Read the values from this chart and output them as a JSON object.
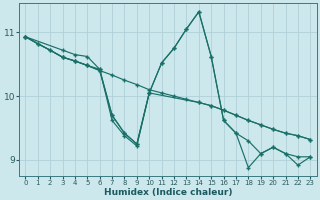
{
  "xlabel": "Humidex (Indice chaleur)",
  "ylabel": "",
  "xlim": [
    -0.5,
    23.5
  ],
  "ylim": [
    8.75,
    11.45
  ],
  "yticks": [
    9,
    10,
    11
  ],
  "xticks": [
    0,
    1,
    2,
    3,
    4,
    5,
    6,
    7,
    8,
    9,
    10,
    11,
    12,
    13,
    14,
    15,
    16,
    17,
    18,
    19,
    20,
    21,
    22,
    23
  ],
  "bg_color": "#cce8ec",
  "grid_color": "#b0d0d8",
  "line_color": "#1a7068",
  "lines": [
    {
      "x": [
        0,
        1,
        2,
        3,
        4,
        5,
        6,
        7,
        8,
        9,
        10,
        11,
        12,
        13,
        14,
        15,
        16,
        17,
        18,
        19,
        20,
        21,
        22,
        23
      ],
      "y": [
        10.93,
        10.82,
        10.72,
        10.61,
        10.55,
        10.48,
        10.4,
        10.33,
        10.25,
        10.18,
        10.1,
        10.05,
        10.0,
        9.95,
        9.9,
        9.85,
        9.78,
        9.7,
        9.62,
        9.55,
        9.48,
        9.42,
        9.38,
        9.32
      ]
    },
    {
      "x": [
        0,
        1,
        2,
        3,
        4,
        5,
        6,
        7,
        8,
        9,
        10,
        14,
        15,
        16,
        17,
        18,
        19,
        20,
        21,
        22,
        23
      ],
      "y": [
        10.93,
        10.82,
        10.72,
        10.61,
        10.55,
        10.48,
        10.4,
        9.7,
        9.42,
        9.25,
        10.05,
        9.9,
        9.85,
        9.78,
        9.7,
        9.62,
        9.55,
        9.48,
        9.42,
        9.38,
        9.32
      ]
    },
    {
      "x": [
        0,
        3,
        4,
        5,
        6,
        7,
        8,
        9,
        10,
        11,
        12,
        13,
        14,
        15,
        16,
        17,
        18,
        19,
        20,
        21,
        22,
        23
      ],
      "y": [
        10.93,
        10.61,
        10.55,
        10.48,
        10.42,
        9.7,
        9.42,
        9.25,
        10.05,
        10.52,
        10.75,
        11.05,
        11.32,
        10.62,
        9.62,
        9.42,
        8.88,
        9.1,
        9.2,
        9.1,
        8.92,
        9.05
      ]
    },
    {
      "x": [
        0,
        3,
        4,
        5,
        6,
        7,
        8,
        9,
        10,
        11,
        12,
        13,
        14,
        15,
        16,
        17,
        18,
        19,
        20,
        21,
        22,
        23
      ],
      "y": [
        10.93,
        10.72,
        10.65,
        10.62,
        10.42,
        9.62,
        9.38,
        9.22,
        10.05,
        10.52,
        10.75,
        11.05,
        11.32,
        10.62,
        9.62,
        9.42,
        9.3,
        9.1,
        9.2,
        9.1,
        9.05,
        9.05
      ]
    }
  ]
}
